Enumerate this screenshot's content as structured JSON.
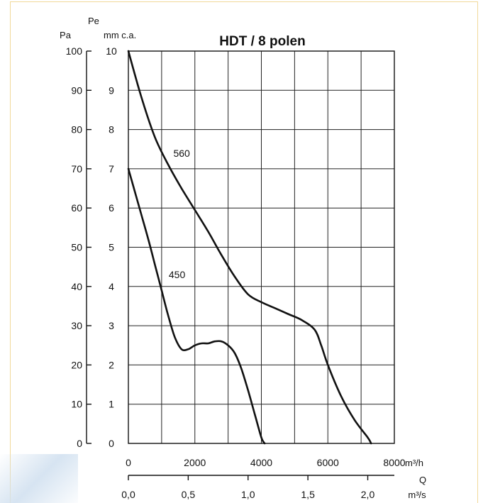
{
  "chart_data": {
    "type": "line",
    "title": "HDT / 8 polen",
    "grid": true,
    "left_axis_label": "Pa",
    "left_axis_ticks": [
      "0",
      "10",
      "20",
      "30",
      "40",
      "50",
      "60",
      "70",
      "80",
      "90",
      "100"
    ],
    "inner_axis_label_top": "Pe",
    "inner_axis_label": "mm c.a.",
    "inner_axis_ticks": [
      "0",
      "1",
      "2",
      "3",
      "4",
      "5",
      "6",
      "7",
      "8",
      "9",
      "10"
    ],
    "x_label": "Q",
    "x_unit_top": "m³/h",
    "x_ticks_top": [
      "0",
      "2000",
      "4000",
      "6000",
      "8000"
    ],
    "x_unit_bottom": "m³/s",
    "x_ticks_bottom": [
      "0,0",
      "0,5",
      "1,0",
      "1,5",
      "2,0"
    ],
    "xlim": [
      0,
      8000
    ],
    "ylim": [
      0,
      100
    ],
    "series": [
      {
        "name": "560",
        "x": [
          0,
          400,
          800,
          1200,
          1600,
          2000,
          2400,
          2800,
          3200,
          3600,
          4000,
          4400,
          4800,
          5200,
          5600,
          5800,
          6000,
          6400,
          6800,
          7200,
          7300
        ],
        "y": [
          100,
          88,
          78,
          71,
          65,
          59.5,
          54,
          48,
          42.5,
          38,
          36,
          34.5,
          33,
          31.5,
          29,
          25,
          20,
          12,
          6,
          1.5,
          0
        ]
      },
      {
        "name": "450",
        "x": [
          0,
          200,
          400,
          600,
          800,
          1000,
          1200,
          1400,
          1600,
          1800,
          2000,
          2200,
          2400,
          2600,
          2800,
          3000,
          3200,
          3400,
          3600,
          3800,
          4000,
          4100
        ],
        "y": [
          70,
          64,
          58,
          52,
          45.5,
          39,
          32.5,
          27,
          24,
          24,
          25,
          25.5,
          25.5,
          26,
          26,
          25,
          23,
          19,
          13.5,
          7.5,
          1.5,
          0
        ]
      }
    ]
  }
}
